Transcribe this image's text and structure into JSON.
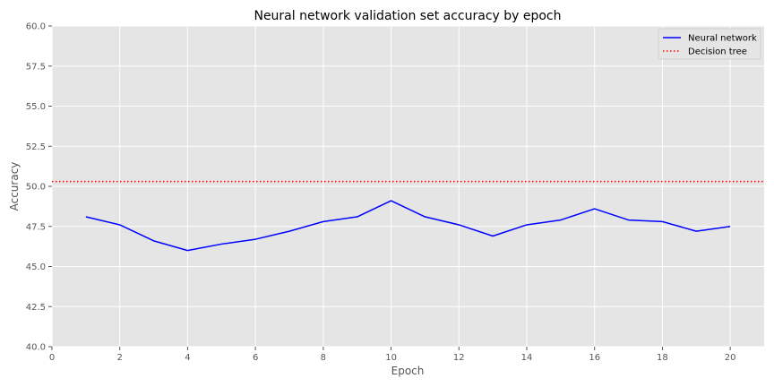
{
  "chart_data": {
    "type": "line",
    "title": "Neural network validation set accuracy by epoch",
    "xlabel": "Epoch",
    "ylabel": "Accuracy",
    "xlim": [
      0,
      21
    ],
    "ylim": [
      40,
      60
    ],
    "xticks": [
      0,
      2,
      4,
      6,
      8,
      10,
      12,
      14,
      16,
      18,
      20
    ],
    "yticks": [
      40.0,
      42.5,
      45.0,
      47.5,
      50.0,
      52.5,
      55.0,
      57.5,
      60.0
    ],
    "grid": true,
    "legend_position": "top-right",
    "series": [
      {
        "name": "Neural network",
        "style": "solid",
        "color": "#0000ff",
        "x": [
          1,
          2,
          3,
          4,
          5,
          6,
          7,
          8,
          9,
          10,
          11,
          12,
          13,
          14,
          15,
          16,
          17,
          18,
          19,
          20
        ],
        "values": [
          48.1,
          47.6,
          46.6,
          46.0,
          46.4,
          46.7,
          47.2,
          47.8,
          48.1,
          49.1,
          48.1,
          47.6,
          46.9,
          47.6,
          47.9,
          48.6,
          47.9,
          47.8,
          47.2,
          47.5
        ]
      },
      {
        "name": "Decision tree",
        "style": "dotted",
        "color": "#ff0000",
        "constant": 50.3
      }
    ]
  }
}
